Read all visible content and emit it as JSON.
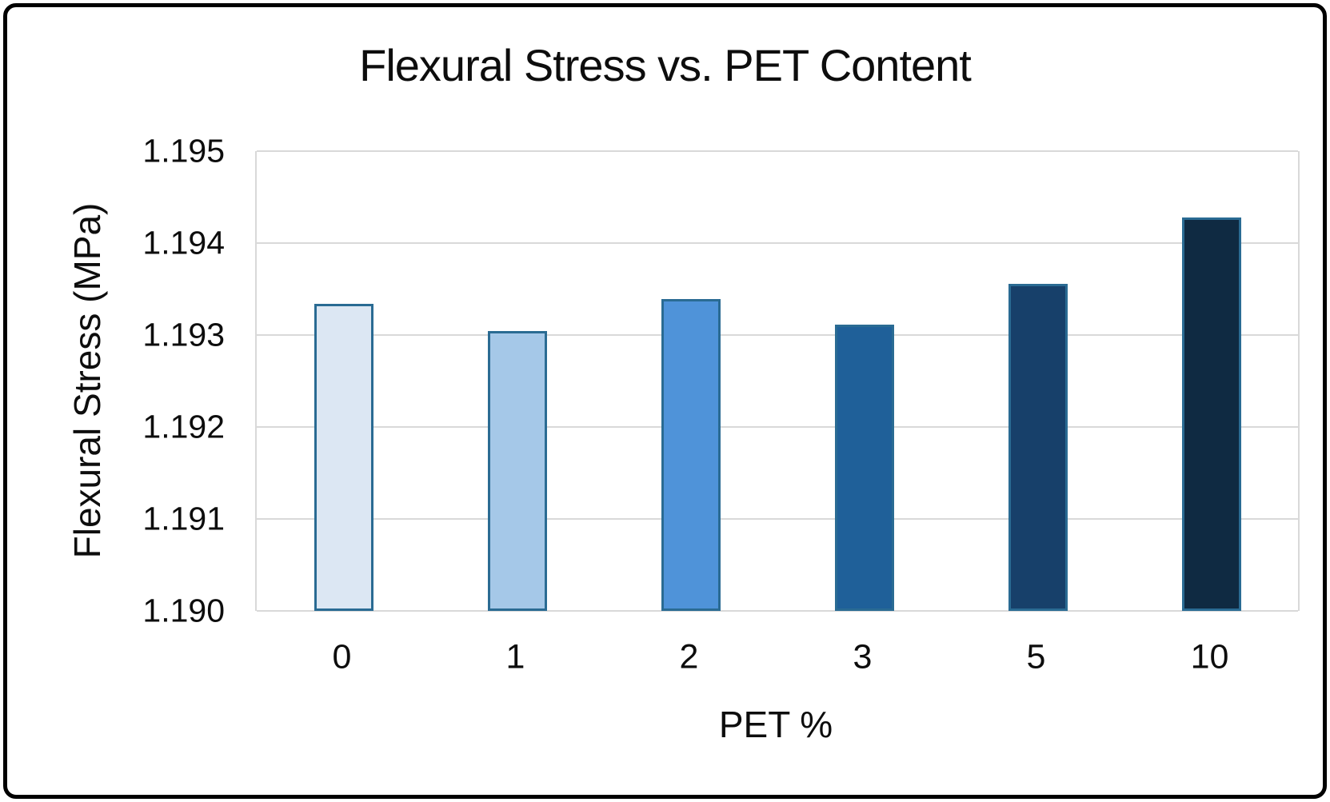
{
  "frame": {
    "border_color": "#000000",
    "background": "#ffffff"
  },
  "chart_data": {
    "type": "bar",
    "title": "Flexural Stress vs. PET Content",
    "xlabel": "PET %",
    "ylabel": "Flexural Stress (MPa)",
    "categories": [
      "0",
      "1",
      "2",
      "3",
      "5",
      "10"
    ],
    "values": [
      1.19334,
      1.19304,
      1.19339,
      1.19311,
      1.19356,
      1.19428
    ],
    "ylim": [
      1.19,
      1.195
    ],
    "ytick_step": 0.001,
    "ytick_labels_top_to_bottom": [
      "1.195",
      "1.194",
      "1.193",
      "1.192",
      "1.191",
      "1.190"
    ],
    "grid": "horizontal",
    "gridline_color": "#d9d9d9",
    "legend": "none",
    "bar_colors": [
      "#dce7f3",
      "#a5c8e8",
      "#4f93d9",
      "#1f6099",
      "#17406a",
      "#0f2a42"
    ],
    "bar_border_color": "#2a6b93",
    "text_color": "#0d0d0d"
  }
}
